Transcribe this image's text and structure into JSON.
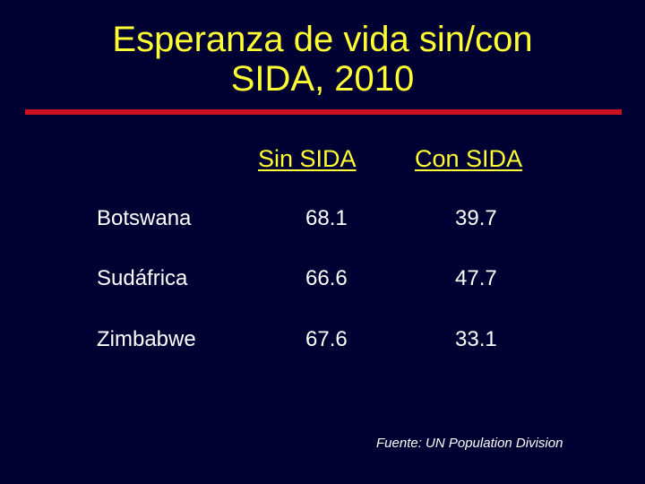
{
  "slide": {
    "title_line1": "Esperanza de vida sin/con",
    "title_line2": "SIDA, 2010",
    "source": "Fuente:  UN Population Division"
  },
  "table": {
    "headers": [
      "Sin SIDA",
      "Con SIDA"
    ],
    "rows": [
      {
        "country": "Botswana",
        "sin": "68.1",
        "con": "39.7"
      },
      {
        "country": "Sudáfrica",
        "sin": "66.6",
        "con": "47.7"
      },
      {
        "country": "Zimbabwe",
        "sin": "67.6",
        "con": "33.1"
      }
    ]
  },
  "colors": {
    "background": "#000033",
    "title": "#ffff33",
    "rule": "#cc1122",
    "text": "#ffffff"
  }
}
